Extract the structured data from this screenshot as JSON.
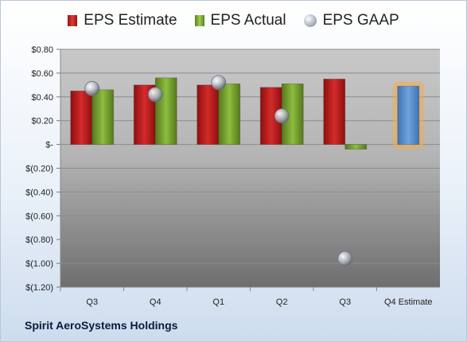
{
  "legend": {
    "estimate": "EPS Estimate",
    "actual": "EPS Actual",
    "gaap": "EPS GAAP"
  },
  "company": "Spirit AeroSystems Holdings",
  "colors": {
    "estimate": "#d42b2b",
    "actual": "#8cbd3f",
    "forecast": "#6fa3dc",
    "forecast_glow": "#f5a94a",
    "gaap": "#b8bec6"
  },
  "chart_data": {
    "type": "bar",
    "categories": [
      "Q3",
      "Q4",
      "Q1",
      "Q2",
      "Q3",
      "Q4 Estimate"
    ],
    "series": [
      {
        "name": "EPS Estimate",
        "values": [
          0.45,
          0.5,
          0.5,
          0.48,
          0.55,
          null
        ]
      },
      {
        "name": "EPS Actual",
        "values": [
          0.46,
          0.56,
          0.51,
          0.51,
          -0.04,
          null
        ]
      },
      {
        "name": "EPS GAAP",
        "type": "scatter",
        "values": [
          0.47,
          0.42,
          0.52,
          0.24,
          -0.96,
          null
        ]
      }
    ],
    "forecast": {
      "category": "Q4 Estimate",
      "value": 0.49
    },
    "ylim": [
      -1.2,
      0.8
    ],
    "yticks": [
      0.8,
      0.6,
      0.4,
      0.2,
      0,
      -0.2,
      -0.4,
      -0.6,
      -0.8,
      -1.0,
      -1.2
    ],
    "ytick_labels": [
      "$0.80",
      "$0.60",
      "$0.40",
      "$0.20",
      "$-",
      "$(0.20)",
      "$(0.40)",
      "$(0.60)",
      "$(0.80)",
      "$(1.00)",
      "$(1.20)"
    ],
    "grid": true,
    "legend_position": "top"
  }
}
